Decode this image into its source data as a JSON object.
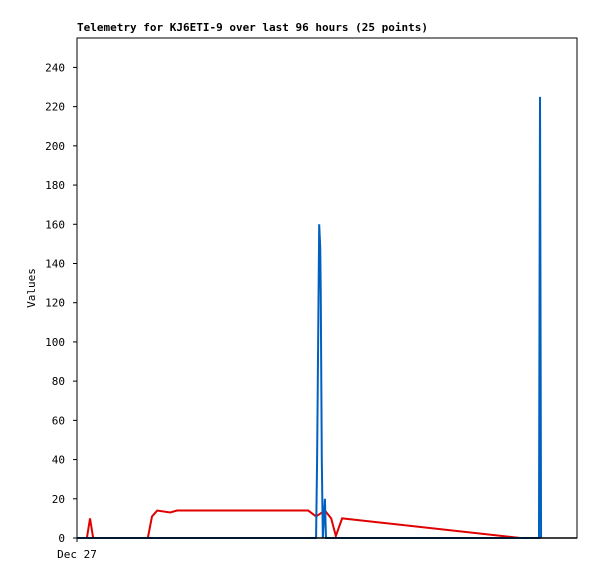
{
  "chart_data": {
    "type": "line",
    "title": "Telemetry for KJ6ETI-9 over last 96 hours (25 points)",
    "y_label": "Values",
    "xlim": [
      0,
      96
    ],
    "xticks": [
      {
        "value": 0,
        "label": "Dec 27"
      }
    ],
    "ylim": [
      0,
      255
    ],
    "yticks": [
      0,
      20,
      40,
      60,
      80,
      100,
      120,
      140,
      160,
      180,
      200,
      220,
      240
    ],
    "series": [
      {
        "color": "#e00000",
        "x": [
          0,
          1.9,
          2.5,
          3.1,
          13.6,
          14.4,
          15.4,
          17.9,
          19.2,
          44.4,
          45.9,
          47.6,
          48.8,
          49.7,
          50.9,
          85.1,
          88.9
        ],
        "values": [
          0,
          0,
          10,
          0,
          0,
          11,
          14,
          13,
          14,
          14,
          11,
          14,
          10,
          1,
          10,
          0,
          0
        ]
      },
      {
        "color": "#0060c0",
        "x": [
          0,
          45.9,
          46.1,
          46.5,
          46.7,
          46.8,
          47.0,
          47.2,
          47.6,
          47.8,
          88.7,
          88.9,
          89.1
        ],
        "values": [
          0,
          0,
          40,
          160,
          148,
          125,
          40,
          0,
          20,
          0,
          0,
          225,
          0
        ]
      }
    ]
  }
}
